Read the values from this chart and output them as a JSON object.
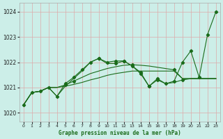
{
  "title": "Graphe pression niveau de la mer (hPa)",
  "bg_color": "#cceee8",
  "grid_color": "#ddaaaa",
  "line_color": "#1a6b1a",
  "xlim": [
    -0.5,
    23.5
  ],
  "ylim": [
    1019.65,
    1024.35
  ],
  "yticks": [
    1020,
    1021,
    1022,
    1023,
    1024
  ],
  "xticks": [
    0,
    1,
    2,
    3,
    4,
    5,
    6,
    7,
    8,
    9,
    10,
    11,
    12,
    13,
    14,
    15,
    16,
    17,
    18,
    19,
    20,
    21,
    22,
    23
  ],
  "series1_x": [
    0,
    1,
    2,
    3,
    4,
    5,
    6,
    7,
    8,
    9,
    10,
    11,
    12,
    13,
    14,
    15,
    16,
    17,
    18,
    19,
    20,
    21,
    22,
    23
  ],
  "series1_y": [
    1020.3,
    1020.8,
    1020.85,
    1021.0,
    1020.65,
    1021.15,
    1021.4,
    1021.7,
    1022.0,
    1022.15,
    1022.0,
    1022.05,
    1022.05,
    1021.85,
    1021.55,
    1021.05,
    1021.35,
    1021.15,
    1021.25,
    1022.0,
    1022.45,
    1021.4,
    1023.1,
    1024.0
  ],
  "series1_markers": [
    0,
    1,
    2,
    3,
    4,
    5,
    6,
    7,
    8,
    9,
    10,
    11,
    12,
    13,
    14,
    15,
    16,
    17,
    18,
    19,
    20,
    21,
    22,
    23
  ],
  "series2_x": [
    0,
    1,
    2,
    3,
    4,
    5,
    6,
    7,
    8,
    9,
    10,
    11,
    12,
    13,
    14,
    15,
    16,
    17,
    18,
    19,
    20,
    21,
    22,
    23
  ],
  "series2_y": [
    1020.3,
    1020.8,
    1020.85,
    1021.0,
    1020.65,
    1021.05,
    1021.35,
    1021.65,
    1022.0,
    1022.15,
    1021.95,
    1021.95,
    1022.05,
    1021.85,
    1021.6,
    1021.05,
    1021.3,
    1021.15,
    1021.2,
    1021.3,
    1021.35,
    1021.35,
    1021.35,
    1021.35
  ],
  "series2_markers": [
    9,
    11,
    12,
    14,
    15,
    16,
    19
  ],
  "series3_x": [
    0,
    1,
    2,
    3,
    4,
    5,
    6,
    7,
    8,
    9,
    10,
    11,
    12,
    13,
    14,
    15,
    16,
    17,
    18,
    19,
    20,
    21,
    22,
    23
  ],
  "series3_y": [
    1020.3,
    1020.8,
    1020.85,
    1021.0,
    1021.0,
    1021.1,
    1021.25,
    1021.4,
    1021.55,
    1021.65,
    1021.75,
    1021.82,
    1021.88,
    1021.9,
    1021.88,
    1021.85,
    1021.8,
    1021.75,
    1021.7,
    1021.35,
    1021.35,
    1021.35,
    1021.35,
    1021.35
  ],
  "series3_markers": [
    5,
    6,
    13,
    18
  ],
  "series4_x": [
    0,
    1,
    2,
    3,
    4,
    5,
    6,
    7,
    8,
    9,
    10,
    11,
    12,
    13,
    14,
    15,
    16,
    17,
    18,
    19,
    20,
    21,
    22,
    23
  ],
  "series4_y": [
    1020.3,
    1020.8,
    1020.85,
    1021.0,
    1021.0,
    1021.05,
    1021.12,
    1021.2,
    1021.3,
    1021.38,
    1021.48,
    1021.55,
    1021.6,
    1021.65,
    1021.65,
    1021.65,
    1021.65,
    1021.65,
    1021.65,
    1021.35,
    1021.35,
    1021.35,
    1021.35,
    1021.35
  ],
  "series4_markers": []
}
